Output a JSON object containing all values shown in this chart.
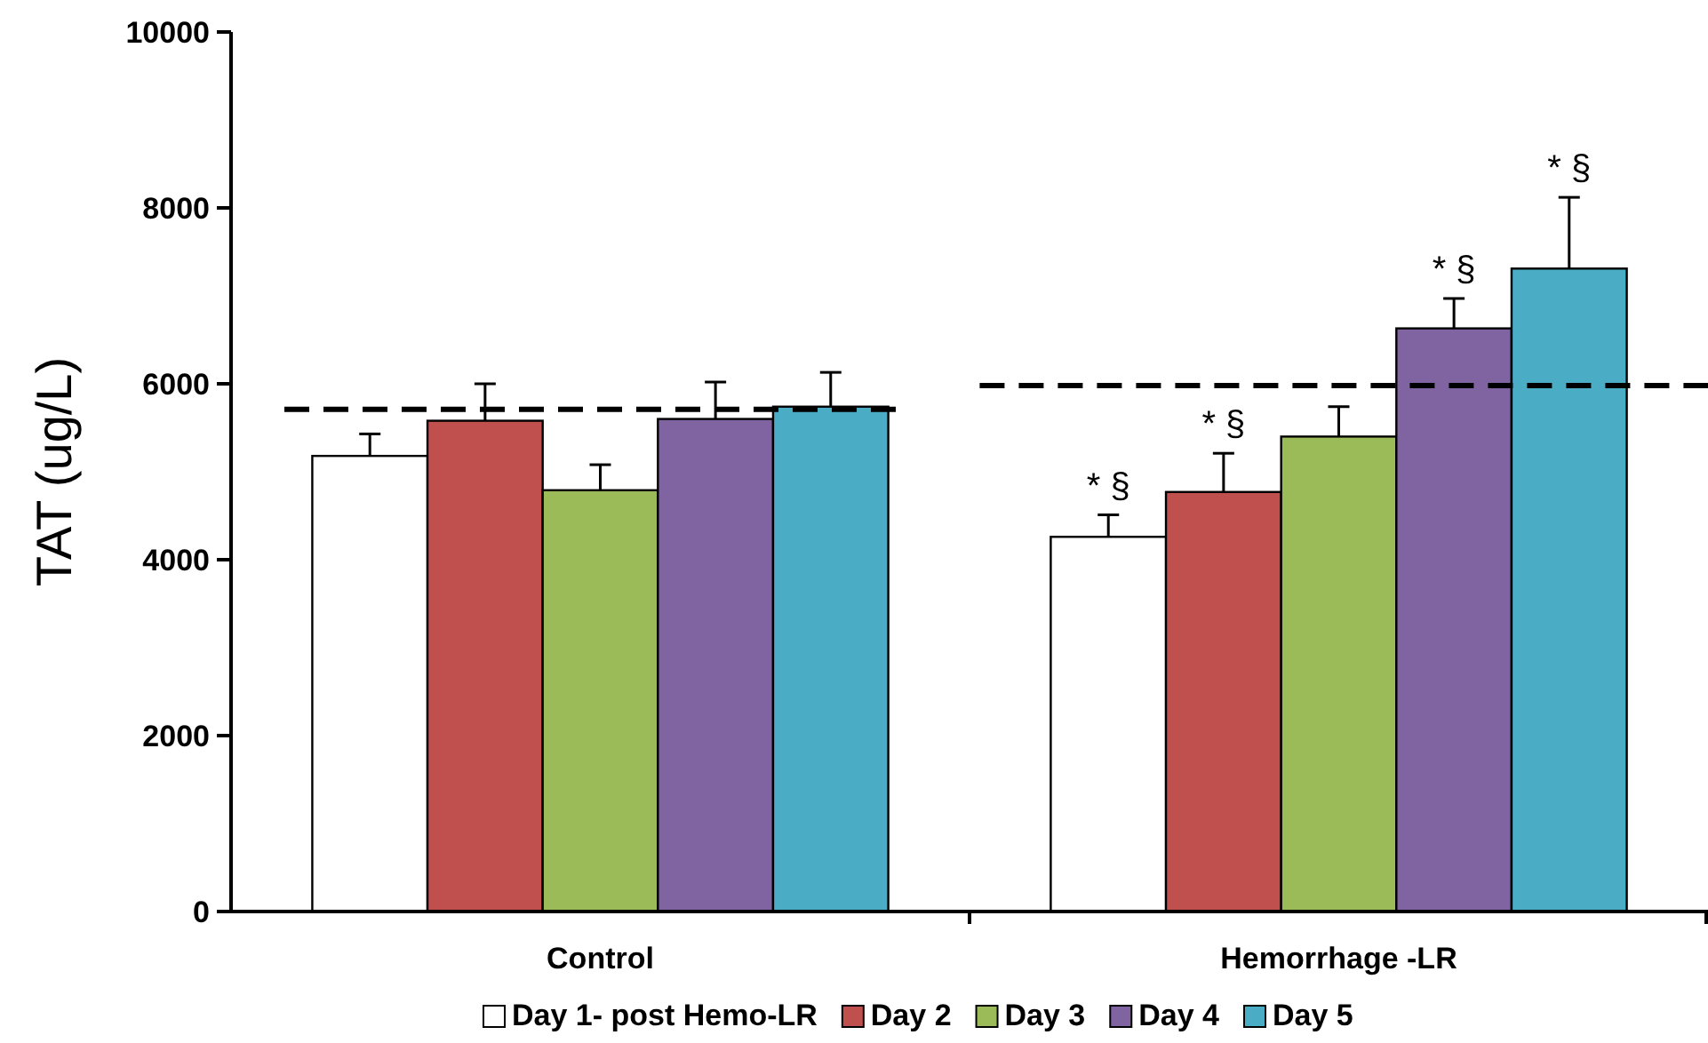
{
  "chart_data": {
    "type": "bar",
    "ylabel": "TAT (ug/L)",
    "categories": [
      "Control",
      "Hemorrhage -LR"
    ],
    "series": [
      {
        "name": "Day 1- post Hemo-LR",
        "color": "#ffffff",
        "values": [
          5180,
          4260
        ],
        "errors": [
          250,
          250
        ]
      },
      {
        "name": "Day 2",
        "color": "#c0504d",
        "values": [
          5580,
          4770
        ],
        "errors": [
          420,
          440
        ]
      },
      {
        "name": "Day 3",
        "color": "#9bbb59",
        "values": [
          4790,
          5400
        ],
        "errors": [
          290,
          340
        ]
      },
      {
        "name": "Day 4",
        "color": "#8064a2",
        "values": [
          5600,
          6630
        ],
        "errors": [
          420,
          340
        ]
      },
      {
        "name": "Day 5",
        "color": "#4bacc6",
        "values": [
          5740,
          7310
        ],
        "errors": [
          390,
          810
        ]
      }
    ],
    "ylim": [
      0,
      10000
    ],
    "yticks": [
      0,
      2000,
      4000,
      6000,
      8000,
      10000
    ],
    "grid": false,
    "legend": "bottom",
    "ref_lines": [
      {
        "axis": "y",
        "value": 5710,
        "color": "#000000",
        "line_style": "dashed"
      },
      {
        "axis": "y",
        "value": 5980,
        "color": "#000000",
        "line_style": "dashed"
      }
    ],
    "annotations": [
      "* §",
      "* §",
      "* §",
      "* §"
    ]
  }
}
